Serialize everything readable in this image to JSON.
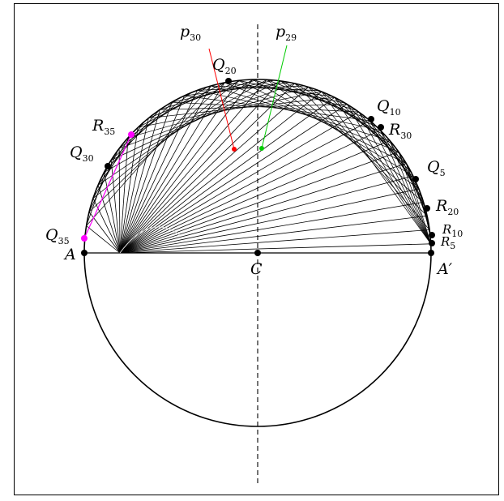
{
  "labels": {
    "A": "A",
    "A_prime": "A′",
    "C": "C",
    "p30_main": "p",
    "p30_sub": "30",
    "p29_main": "p",
    "p29_sub": "29",
    "Q20_main": "Q",
    "Q20_sub": "20",
    "Q10_main": "Q",
    "Q10_sub": "10",
    "R30_main": "R",
    "R30_sub": "30",
    "R35_main": "R",
    "R35_sub": "35",
    "Q30_main": "Q",
    "Q30_sub": "30",
    "Q5_main": "Q",
    "Q5_sub": "5",
    "R20_main": "R",
    "R20_sub": "20",
    "R10_main": "R",
    "R10_sub": "10",
    "R5_main": "R",
    "R5_sub": "5",
    "Q35_main": "Q",
    "Q35_sub": "35"
  },
  "colors": {
    "frame": "#000000",
    "lines": "#000000",
    "p30_marker": "#ff0000",
    "p29_marker": "#00cc00",
    "Q35_R35_segment": "#ff00ff"
  }
}
